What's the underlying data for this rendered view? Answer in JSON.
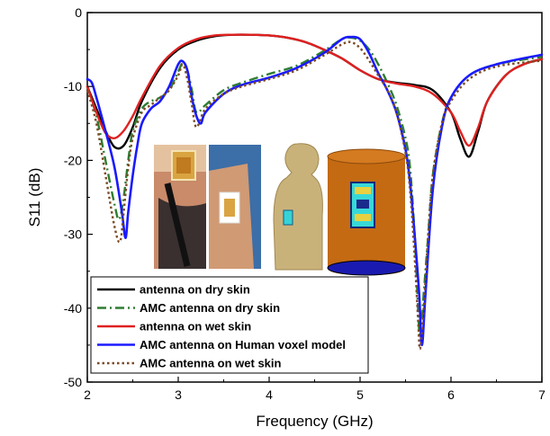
{
  "chart_data": {
    "type": "line",
    "title": "",
    "xlabel": "Frequency (GHz)",
    "ylabel": "S11 (dB)",
    "xlim": [
      2,
      7
    ],
    "ylim": [
      -50,
      0
    ],
    "x_ticks": [
      "2",
      "3",
      "4",
      "5",
      "6",
      "7"
    ],
    "y_ticks": [
      "0",
      "-10",
      "-20",
      "-30",
      "-40",
      "-50"
    ],
    "grid": false,
    "legend_position": "bottom-left",
    "series": [
      {
        "name": "antenna on dry skin",
        "color": "#000000",
        "dash": "solid",
        "x": [
          2.0,
          2.1,
          2.2,
          2.3,
          2.4,
          2.5,
          2.6,
          2.8,
          3.0,
          3.2,
          3.4,
          3.6,
          3.8,
          4.0,
          4.2,
          4.4,
          4.6,
          4.8,
          5.0,
          5.2,
          5.4,
          5.6,
          5.8,
          6.0,
          6.1,
          6.2,
          6.3,
          6.4,
          6.6,
          6.8,
          7.0
        ],
        "y": [
          -10.0,
          -13.0,
          -16.0,
          -18.2,
          -18.0,
          -15.5,
          -12.0,
          -7.5,
          -5.0,
          -3.8,
          -3.2,
          -3.0,
          -3.0,
          -3.1,
          -3.4,
          -4.0,
          -5.0,
          -6.2,
          -7.8,
          -9.0,
          -9.5,
          -9.8,
          -10.5,
          -13.5,
          -17.0,
          -19.5,
          -16.0,
          -12.0,
          -8.5,
          -7.0,
          -6.3
        ]
      },
      {
        "name": "AMC antenna on dry skin",
        "color": "#2e7d32",
        "dash": "dashdot",
        "x": [
          2.0,
          2.1,
          2.2,
          2.3,
          2.35,
          2.4,
          2.45,
          2.5,
          2.6,
          2.7,
          2.8,
          2.9,
          3.0,
          3.05,
          3.1,
          3.15,
          3.2,
          3.3,
          3.5,
          3.7,
          4.0,
          4.3,
          4.6,
          4.8,
          4.9,
          5.0,
          5.1,
          5.2,
          5.3,
          5.4,
          5.5,
          5.55,
          5.6,
          5.63,
          5.66,
          5.7,
          5.75,
          5.8,
          5.9,
          6.0,
          6.2,
          6.5,
          7.0
        ],
        "y": [
          -10.0,
          -14.0,
          -20.0,
          -26.0,
          -28.0,
          -25.0,
          -20.0,
          -16.0,
          -13.0,
          -12.0,
          -11.5,
          -10.5,
          -8.0,
          -6.8,
          -7.8,
          -10.5,
          -13.5,
          -12.5,
          -10.5,
          -9.5,
          -8.3,
          -7.2,
          -5.2,
          -3.6,
          -3.4,
          -3.8,
          -5.0,
          -7.0,
          -9.5,
          -12.5,
          -17.0,
          -21.0,
          -30.0,
          -38.0,
          -44.0,
          -38.0,
          -30.0,
          -22.0,
          -15.0,
          -11.5,
          -8.5,
          -7.0,
          -6.0
        ]
      },
      {
        "name": "antenna on wet skin",
        "color": "#e02020",
        "dash": "solid",
        "x": [
          2.0,
          2.1,
          2.2,
          2.3,
          2.4,
          2.5,
          2.6,
          2.8,
          3.0,
          3.2,
          3.4,
          3.6,
          3.8,
          4.0,
          4.2,
          4.4,
          4.6,
          4.8,
          5.0,
          5.2,
          5.4,
          5.6,
          5.8,
          6.0,
          6.1,
          6.2,
          6.3,
          6.4,
          6.6,
          6.8,
          7.0
        ],
        "y": [
          -10.0,
          -13.5,
          -16.3,
          -17.0,
          -16.0,
          -14.0,
          -11.5,
          -7.2,
          -4.8,
          -3.6,
          -3.1,
          -3.0,
          -3.0,
          -3.1,
          -3.4,
          -4.0,
          -5.0,
          -6.2,
          -7.8,
          -9.0,
          -9.6,
          -10.0,
          -11.0,
          -13.5,
          -16.0,
          -18.0,
          -15.5,
          -12.0,
          -8.5,
          -7.0,
          -6.3
        ]
      },
      {
        "name": "AMC antenna on Human voxel model",
        "color": "#1a1aff",
        "dash": "solid",
        "x": [
          2.0,
          2.05,
          2.1,
          2.2,
          2.3,
          2.38,
          2.42,
          2.45,
          2.5,
          2.55,
          2.6,
          2.7,
          2.8,
          2.9,
          3.0,
          3.05,
          3.1,
          3.15,
          3.2,
          3.25,
          3.3,
          3.5,
          3.7,
          4.0,
          4.3,
          4.6,
          4.8,
          4.9,
          5.0,
          5.1,
          5.2,
          5.3,
          5.4,
          5.5,
          5.55,
          5.6,
          5.65,
          5.68,
          5.72,
          5.8,
          5.9,
          6.0,
          6.2,
          6.5,
          7.0
        ],
        "y": [
          -9.0,
          -9.5,
          -11.5,
          -16.0,
          -21.0,
          -27.0,
          -30.5,
          -27.0,
          -22.0,
          -18.0,
          -15.0,
          -13.0,
          -12.0,
          -10.0,
          -7.0,
          -6.6,
          -7.8,
          -11.5,
          -14.0,
          -15.0,
          -13.5,
          -11.0,
          -9.8,
          -8.8,
          -7.5,
          -5.5,
          -3.6,
          -3.3,
          -3.6,
          -5.5,
          -8.2,
          -10.5,
          -13.5,
          -18.5,
          -23.0,
          -30.0,
          -38.0,
          -45.0,
          -38.0,
          -24.0,
          -15.5,
          -11.5,
          -8.5,
          -7.0,
          -5.7
        ]
      },
      {
        "name": "AMC antenna on wet skin",
        "color": "#7b4a26",
        "dash": "dotted",
        "x": [
          2.0,
          2.1,
          2.2,
          2.3,
          2.36,
          2.4,
          2.45,
          2.5,
          2.6,
          2.7,
          2.8,
          2.9,
          3.0,
          3.05,
          3.1,
          3.15,
          3.2,
          3.3,
          3.5,
          3.7,
          4.0,
          4.3,
          4.6,
          4.8,
          4.9,
          5.0,
          5.1,
          5.2,
          5.3,
          5.4,
          5.5,
          5.55,
          5.6,
          5.64,
          5.66,
          5.7,
          5.75,
          5.8,
          5.9,
          6.0,
          6.2,
          6.5,
          7.0
        ],
        "y": [
          -10.5,
          -15.0,
          -22.0,
          -29.0,
          -31.0,
          -27.0,
          -21.0,
          -17.0,
          -13.5,
          -12.5,
          -11.5,
          -10.5,
          -8.5,
          -7.0,
          -9.0,
          -12.5,
          -15.5,
          -13.0,
          -11.0,
          -10.0,
          -9.0,
          -7.8,
          -5.8,
          -4.3,
          -4.0,
          -4.8,
          -6.5,
          -8.5,
          -10.5,
          -13.5,
          -19.0,
          -24.0,
          -33.0,
          -42.0,
          -45.5,
          -40.0,
          -30.0,
          -22.0,
          -15.0,
          -12.0,
          -9.0,
          -7.3,
          -6.5
        ]
      }
    ],
    "inset_images": [
      {
        "description": "photo: antenna on forearm"
      },
      {
        "description": "photo: antenna on upper arm"
      },
      {
        "description": "render: human voxel model with antenna"
      },
      {
        "description": "render: cylinder phantom with antenna"
      }
    ]
  }
}
